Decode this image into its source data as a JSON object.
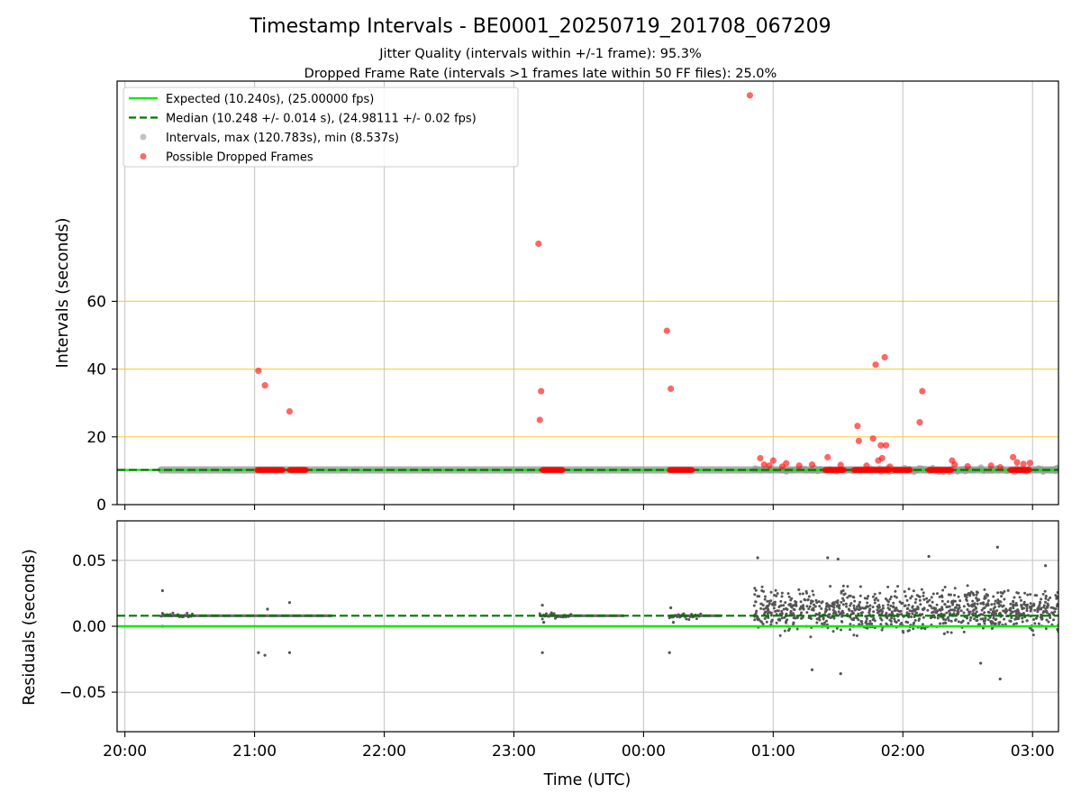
{
  "figure": {
    "title": "Timestamp Intervals - BE0001_20250719_201708_067209",
    "subtitle1": "Jitter Quality (intervals within +/-1 frame): 95.3%",
    "subtitle2": "Dropped Frame Rate (intervals >1 frames late within 50 FF files): 25.0%"
  },
  "colors": {
    "expected": "#00ee00",
    "median": "#007700",
    "intervals": "#999999",
    "dropped": "#ff0000",
    "threshold": "#ffc300",
    "grid": "#cccccc",
    "residual_points": "#555555"
  },
  "chart_data": [
    {
      "type": "scatter",
      "panel": "intervals",
      "ylabel": "Intervals (seconds)",
      "xlabel": "",
      "x_ticks": [
        "20:00",
        "21:00",
        "22:00",
        "23:00",
        "00:00",
        "01:00",
        "02:00",
        "03:00"
      ],
      "xlim_hours": [
        19.94,
        27.2
      ],
      "ylim": [
        0,
        125
      ],
      "y_ticks": [
        0,
        20,
        40,
        60
      ],
      "threshold_lines": [
        20,
        40,
        60
      ],
      "grid": true,
      "legend_position": "upper-left",
      "legend": [
        {
          "label": "Expected (10.240s), (25.00000 fps)",
          "style": "solid-line",
          "color_key": "expected"
        },
        {
          "label": "Median (10.248 +/- 0.014 s), (24.98111 +/- 0.02 fps)",
          "style": "dashed-line",
          "color_key": "median"
        },
        {
          "label": "Intervals, max (120.783s), min (8.537s)",
          "style": "marker",
          "color_key": "intervals"
        },
        {
          "label": "Possible Dropped Frames",
          "style": "marker",
          "color_key": "dropped"
        }
      ],
      "expected_interval": 10.24,
      "median_interval": 10.248,
      "interval_band": {
        "x_start": 20.28,
        "x_end": 27.2,
        "value": 10.24
      },
      "scatter_segment_start": 24.85,
      "dropped_clusters": [
        {
          "x_start": 21.02,
          "x_end": 21.22,
          "value": 10.24
        },
        {
          "x_start": 21.27,
          "x_end": 21.4,
          "value": 10.24
        },
        {
          "x_start": 23.22,
          "x_end": 23.38,
          "value": 10.24
        },
        {
          "x_start": 24.2,
          "x_end": 24.38,
          "value": 10.24
        },
        {
          "x_start": 25.4,
          "x_end": 25.55,
          "value": 10.24
        },
        {
          "x_start": 25.62,
          "x_end": 25.9,
          "value": 10.24
        },
        {
          "x_start": 25.93,
          "x_end": 26.06,
          "value": 10.24
        },
        {
          "x_start": 26.2,
          "x_end": 26.38,
          "value": 10.24
        },
        {
          "x_start": 26.83,
          "x_end": 26.98,
          "value": 10.24
        }
      ],
      "dropped_outliers": [
        {
          "x": 21.03,
          "y": 39.5
        },
        {
          "x": 21.08,
          "y": 35.2
        },
        {
          "x": 21.27,
          "y": 27.5
        },
        {
          "x": 23.19,
          "y": 77.0
        },
        {
          "x": 23.21,
          "y": 33.5
        },
        {
          "x": 23.2,
          "y": 25.0
        },
        {
          "x": 24.18,
          "y": 51.3
        },
        {
          "x": 24.21,
          "y": 34.2
        },
        {
          "x": 24.82,
          "y": 120.8
        },
        {
          "x": 24.9,
          "y": 13.7
        },
        {
          "x": 24.93,
          "y": 11.8
        },
        {
          "x": 24.97,
          "y": 11.5
        },
        {
          "x": 25.0,
          "y": 13.0
        },
        {
          "x": 25.07,
          "y": 11.2
        },
        {
          "x": 25.1,
          "y": 12.2
        },
        {
          "x": 25.2,
          "y": 11.5
        },
        {
          "x": 25.3,
          "y": 11.8
        },
        {
          "x": 25.42,
          "y": 14.0
        },
        {
          "x": 25.52,
          "y": 11.7
        },
        {
          "x": 25.65,
          "y": 23.2
        },
        {
          "x": 25.66,
          "y": 18.8
        },
        {
          "x": 25.72,
          "y": 11.5
        },
        {
          "x": 25.77,
          "y": 19.5
        },
        {
          "x": 25.79,
          "y": 41.3
        },
        {
          "x": 25.81,
          "y": 13.0
        },
        {
          "x": 25.83,
          "y": 17.5
        },
        {
          "x": 25.84,
          "y": 13.7
        },
        {
          "x": 25.86,
          "y": 43.5
        },
        {
          "x": 25.87,
          "y": 17.5
        },
        {
          "x": 25.9,
          "y": 11.2
        },
        {
          "x": 26.13,
          "y": 24.3
        },
        {
          "x": 26.15,
          "y": 33.5
        },
        {
          "x": 26.38,
          "y": 13.0
        },
        {
          "x": 26.4,
          "y": 11.8
        },
        {
          "x": 26.5,
          "y": 11.3
        },
        {
          "x": 26.68,
          "y": 11.5
        },
        {
          "x": 26.75,
          "y": 11.0
        },
        {
          "x": 26.85,
          "y": 14.0
        },
        {
          "x": 26.88,
          "y": 12.5
        },
        {
          "x": 26.93,
          "y": 12.0
        },
        {
          "x": 26.98,
          "y": 12.3
        }
      ]
    },
    {
      "type": "scatter",
      "panel": "residuals",
      "ylabel": "Residuals (seconds)",
      "xlabel": "Time (UTC)",
      "x_ticks": [
        "20:00",
        "21:00",
        "22:00",
        "23:00",
        "00:00",
        "01:00",
        "02:00",
        "03:00"
      ],
      "xlim_hours": [
        19.94,
        27.2
      ],
      "ylim": [
        -0.08,
        0.08
      ],
      "y_ticks": [
        0.05,
        0.0,
        -0.05
      ],
      "y_tick_labels": [
        "0.05",
        "0.00",
        "−0.05"
      ],
      "grid": true,
      "expected_residual": 0.0,
      "median_residual": 0.008,
      "stable_segments": [
        {
          "x_start": 20.28,
          "x_end": 21.6,
          "value": 0.008
        },
        {
          "x_start": 23.2,
          "x_end": 23.85,
          "value": 0.008
        },
        {
          "x_start": 24.2,
          "x_end": 24.6,
          "value": 0.008
        }
      ],
      "stable_outliers": [
        {
          "x": 20.29,
          "y": 0.027
        },
        {
          "x": 20.29,
          "y": 0.0
        },
        {
          "x": 21.03,
          "y": -0.02
        },
        {
          "x": 21.08,
          "y": -0.022
        },
        {
          "x": 21.27,
          "y": 0.018
        },
        {
          "x": 21.27,
          "y": -0.02
        },
        {
          "x": 23.22,
          "y": 0.016
        },
        {
          "x": 23.22,
          "y": -0.02
        },
        {
          "x": 24.21,
          "y": 0.014
        },
        {
          "x": 24.2,
          "y": -0.02
        },
        {
          "x": 21.1,
          "y": 0.013
        },
        {
          "x": 23.23,
          "y": 0.003
        },
        {
          "x": 24.23,
          "y": 0.003
        }
      ],
      "noisy_segment": {
        "x_start": 24.85,
        "x_end": 27.2,
        "center": 0.012,
        "spread": 0.017,
        "count": 1000
      },
      "noisy_extremes": [
        {
          "x": 24.88,
          "y": 0.052
        },
        {
          "x": 25.42,
          "y": 0.052
        },
        {
          "x": 25.5,
          "y": 0.051
        },
        {
          "x": 26.2,
          "y": 0.053
        },
        {
          "x": 26.73,
          "y": 0.06
        },
        {
          "x": 27.1,
          "y": 0.046
        },
        {
          "x": 25.52,
          "y": -0.036
        },
        {
          "x": 26.75,
          "y": -0.04
        },
        {
          "x": 25.3,
          "y": -0.033
        },
        {
          "x": 26.6,
          "y": -0.028
        }
      ]
    }
  ]
}
